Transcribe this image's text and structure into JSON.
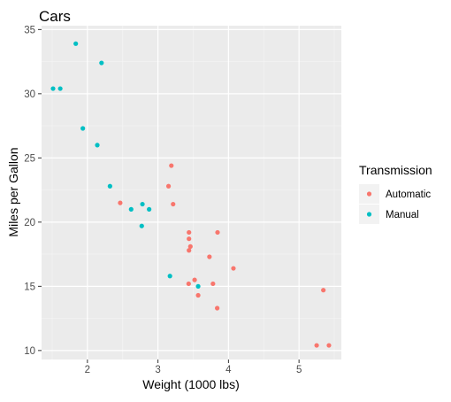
{
  "chart_data": {
    "type": "scatter",
    "title": "Cars",
    "xlabel": "Weight (1000 lbs)",
    "ylabel": "Miles per Gallon",
    "xlim": [
      1.35,
      5.6
    ],
    "ylim": [
      9.3,
      35.3
    ],
    "x_ticks": [
      2,
      3,
      4,
      5
    ],
    "y_ticks": [
      10,
      15,
      20,
      25,
      30,
      35
    ],
    "grid": true,
    "legend": {
      "title": "Transmission",
      "placement": "right"
    },
    "series": [
      {
        "name": "Automatic",
        "color": "#F8766D",
        "points": [
          [
            2.465,
            21.5
          ],
          [
            3.215,
            21.4
          ],
          [
            3.19,
            24.4
          ],
          [
            3.15,
            22.8
          ],
          [
            3.44,
            18.7
          ],
          [
            3.46,
            18.1
          ],
          [
            3.57,
            14.3
          ],
          [
            3.44,
            19.2
          ],
          [
            3.44,
            17.8
          ],
          [
            4.07,
            16.4
          ],
          [
            3.73,
            17.3
          ],
          [
            3.78,
            15.2
          ],
          [
            5.25,
            10.4
          ],
          [
            5.424,
            10.4
          ],
          [
            5.345,
            14.7
          ],
          [
            3.52,
            15.5
          ],
          [
            3.435,
            15.2
          ],
          [
            3.84,
            13.3
          ],
          [
            3.845,
            19.2
          ]
        ]
      },
      {
        "name": "Manual",
        "color": "#00BFC4",
        "points": [
          [
            2.62,
            21.0
          ],
          [
            2.875,
            21.0
          ],
          [
            2.32,
            22.8
          ],
          [
            2.2,
            32.4
          ],
          [
            1.615,
            30.4
          ],
          [
            1.835,
            33.9
          ],
          [
            1.935,
            27.3
          ],
          [
            2.14,
            26.0
          ],
          [
            1.513,
            30.4
          ],
          [
            3.17,
            15.8
          ],
          [
            2.77,
            19.7
          ],
          [
            3.57,
            15.0
          ],
          [
            2.78,
            21.4
          ]
        ]
      }
    ]
  }
}
